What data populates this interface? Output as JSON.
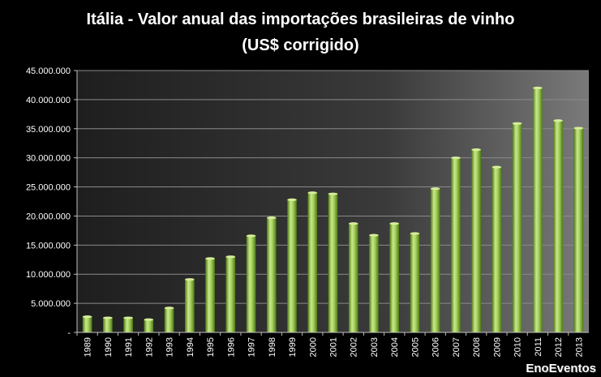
{
  "chart_data": {
    "type": "bar",
    "title_lines": [
      "Itália - Valor anual das importações  brasileiras de vinho",
      "(US$ corrigido)"
    ],
    "categories": [
      "1989",
      "1990",
      "1991",
      "1992",
      "1993",
      "1994",
      "1995",
      "1996",
      "1997",
      "1998",
      "1999",
      "2000",
      "2001",
      "2002",
      "2003",
      "2004",
      "2005",
      "2006",
      "2007",
      "2008",
      "2009",
      "2010",
      "2011",
      "2012",
      "2013"
    ],
    "values": [
      2700000,
      2500000,
      2500000,
      2200000,
      4200000,
      9100000,
      12700000,
      13000000,
      16600000,
      19700000,
      22800000,
      24000000,
      23800000,
      18700000,
      16700000,
      18700000,
      17000000,
      24700000,
      30000000,
      31400000,
      28400000,
      35900000,
      42000000,
      36400000,
      35100000
    ],
    "ylim": [
      0,
      45000000
    ],
    "ytick_labels": [
      "-",
      "5.000.000",
      "10.000.000",
      "15.000.000",
      "20.000.000",
      "25.000.000",
      "30.000.000",
      "35.000.000",
      "40.000.000",
      "45.000.000"
    ],
    "grid": true,
    "colors": {
      "bar_light": "#d6ee9a",
      "bar_dark": "#5c8a1c",
      "background_dark": "#262626",
      "background_mid": "#6e6e6e",
      "gridline": "#8a8a8a"
    }
  },
  "watermark": "EnoEventos"
}
